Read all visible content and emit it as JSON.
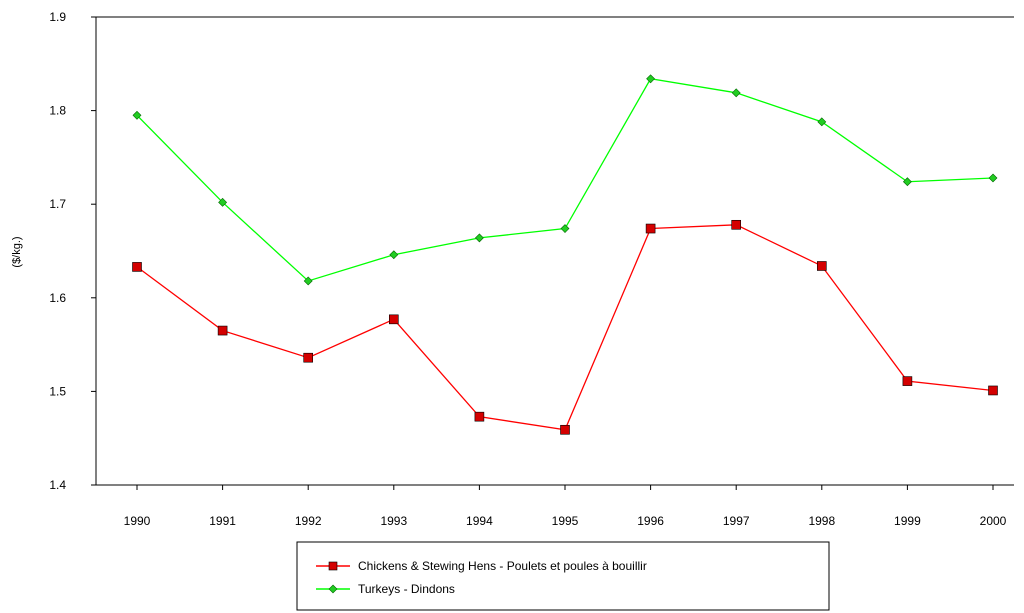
{
  "chart_data": {
    "type": "line",
    "title": "",
    "xlabel": "",
    "ylabel": "($/kg.)",
    "ylim": [
      1.4,
      1.9
    ],
    "yticks": [
      "1.4",
      "1.5",
      "1.6",
      "1.7",
      "1.8",
      "1.9"
    ],
    "categories": [
      "1990",
      "1991",
      "1992",
      "1993",
      "1994",
      "1995",
      "1996",
      "1997",
      "1998",
      "1999",
      "2000"
    ],
    "grid": false,
    "legend_position": "bottom",
    "series": [
      {
        "name": "Chickens & Stewing Hens - Poulets et poules à bouillir",
        "color": "#ff0000",
        "marker": "square",
        "values": [
          1.633,
          1.565,
          1.536,
          1.577,
          1.473,
          1.459,
          1.674,
          1.678,
          1.634,
          1.511,
          1.501
        ]
      },
      {
        "name": "Turkeys - Dindons",
        "color": "#00ff00",
        "marker": "diamond",
        "values": [
          1.795,
          1.702,
          1.618,
          1.646,
          1.664,
          1.674,
          1.834,
          1.819,
          1.788,
          1.724,
          1.728
        ]
      }
    ]
  }
}
